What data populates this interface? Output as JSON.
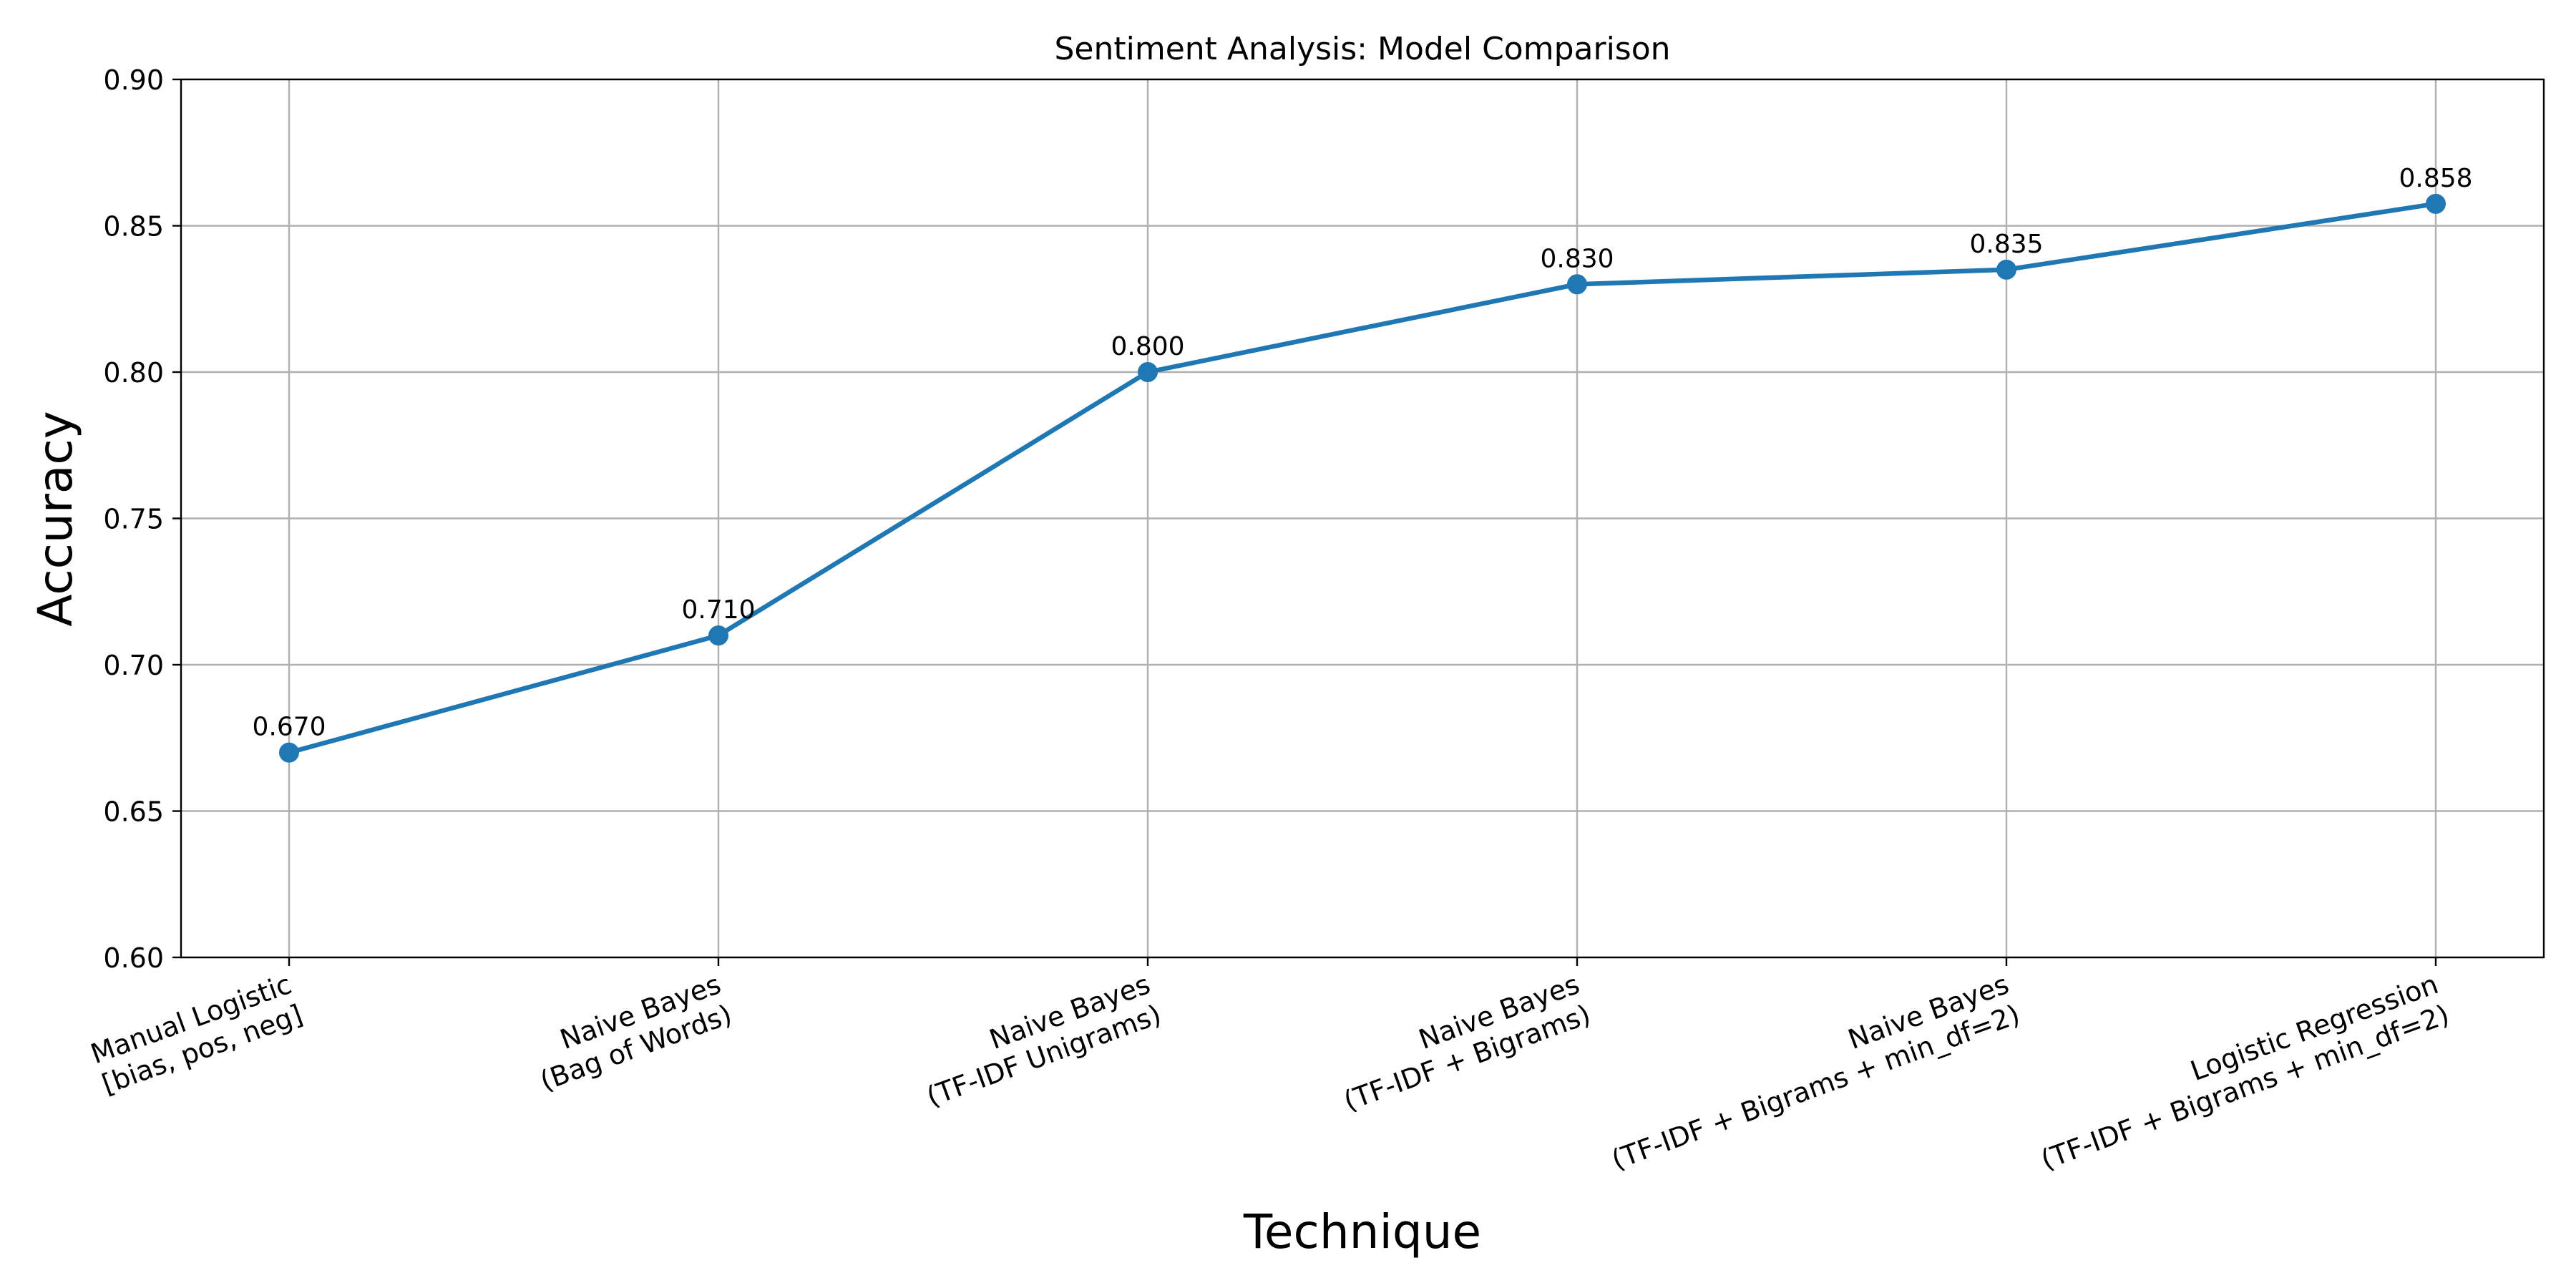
{
  "chart_data": {
    "type": "line",
    "title": "Sentiment Analysis: Model Comparison",
    "xlabel": "Technique",
    "ylabel": "Accuracy",
    "categories": [
      [
        "Manual Logistic",
        "[bias, pos, neg]"
      ],
      [
        "Naive Bayes",
        "(Bag of Words)"
      ],
      [
        "Naive Bayes",
        "(TF-IDF Unigrams)"
      ],
      [
        "Naive Bayes",
        "(TF-IDF + Bigrams)"
      ],
      [
        "Naive Bayes",
        "(TF-IDF + Bigrams + min_df=2)"
      ],
      [
        "Logistic Regression",
        "(TF-IDF + Bigrams + min_df=2)"
      ]
    ],
    "values": [
      0.67,
      0.71,
      0.8,
      0.83,
      0.835,
      0.8575
    ],
    "data_labels": [
      "0.670",
      "0.710",
      "0.800",
      "0.830",
      "0.835",
      "0.858"
    ],
    "ylim": [
      0.6,
      0.9
    ],
    "yticks": [
      "0.60",
      "0.65",
      "0.70",
      "0.75",
      "0.80",
      "0.85",
      "0.90"
    ],
    "grid": true,
    "line_color": "#1f77b4",
    "marker": "circle"
  }
}
